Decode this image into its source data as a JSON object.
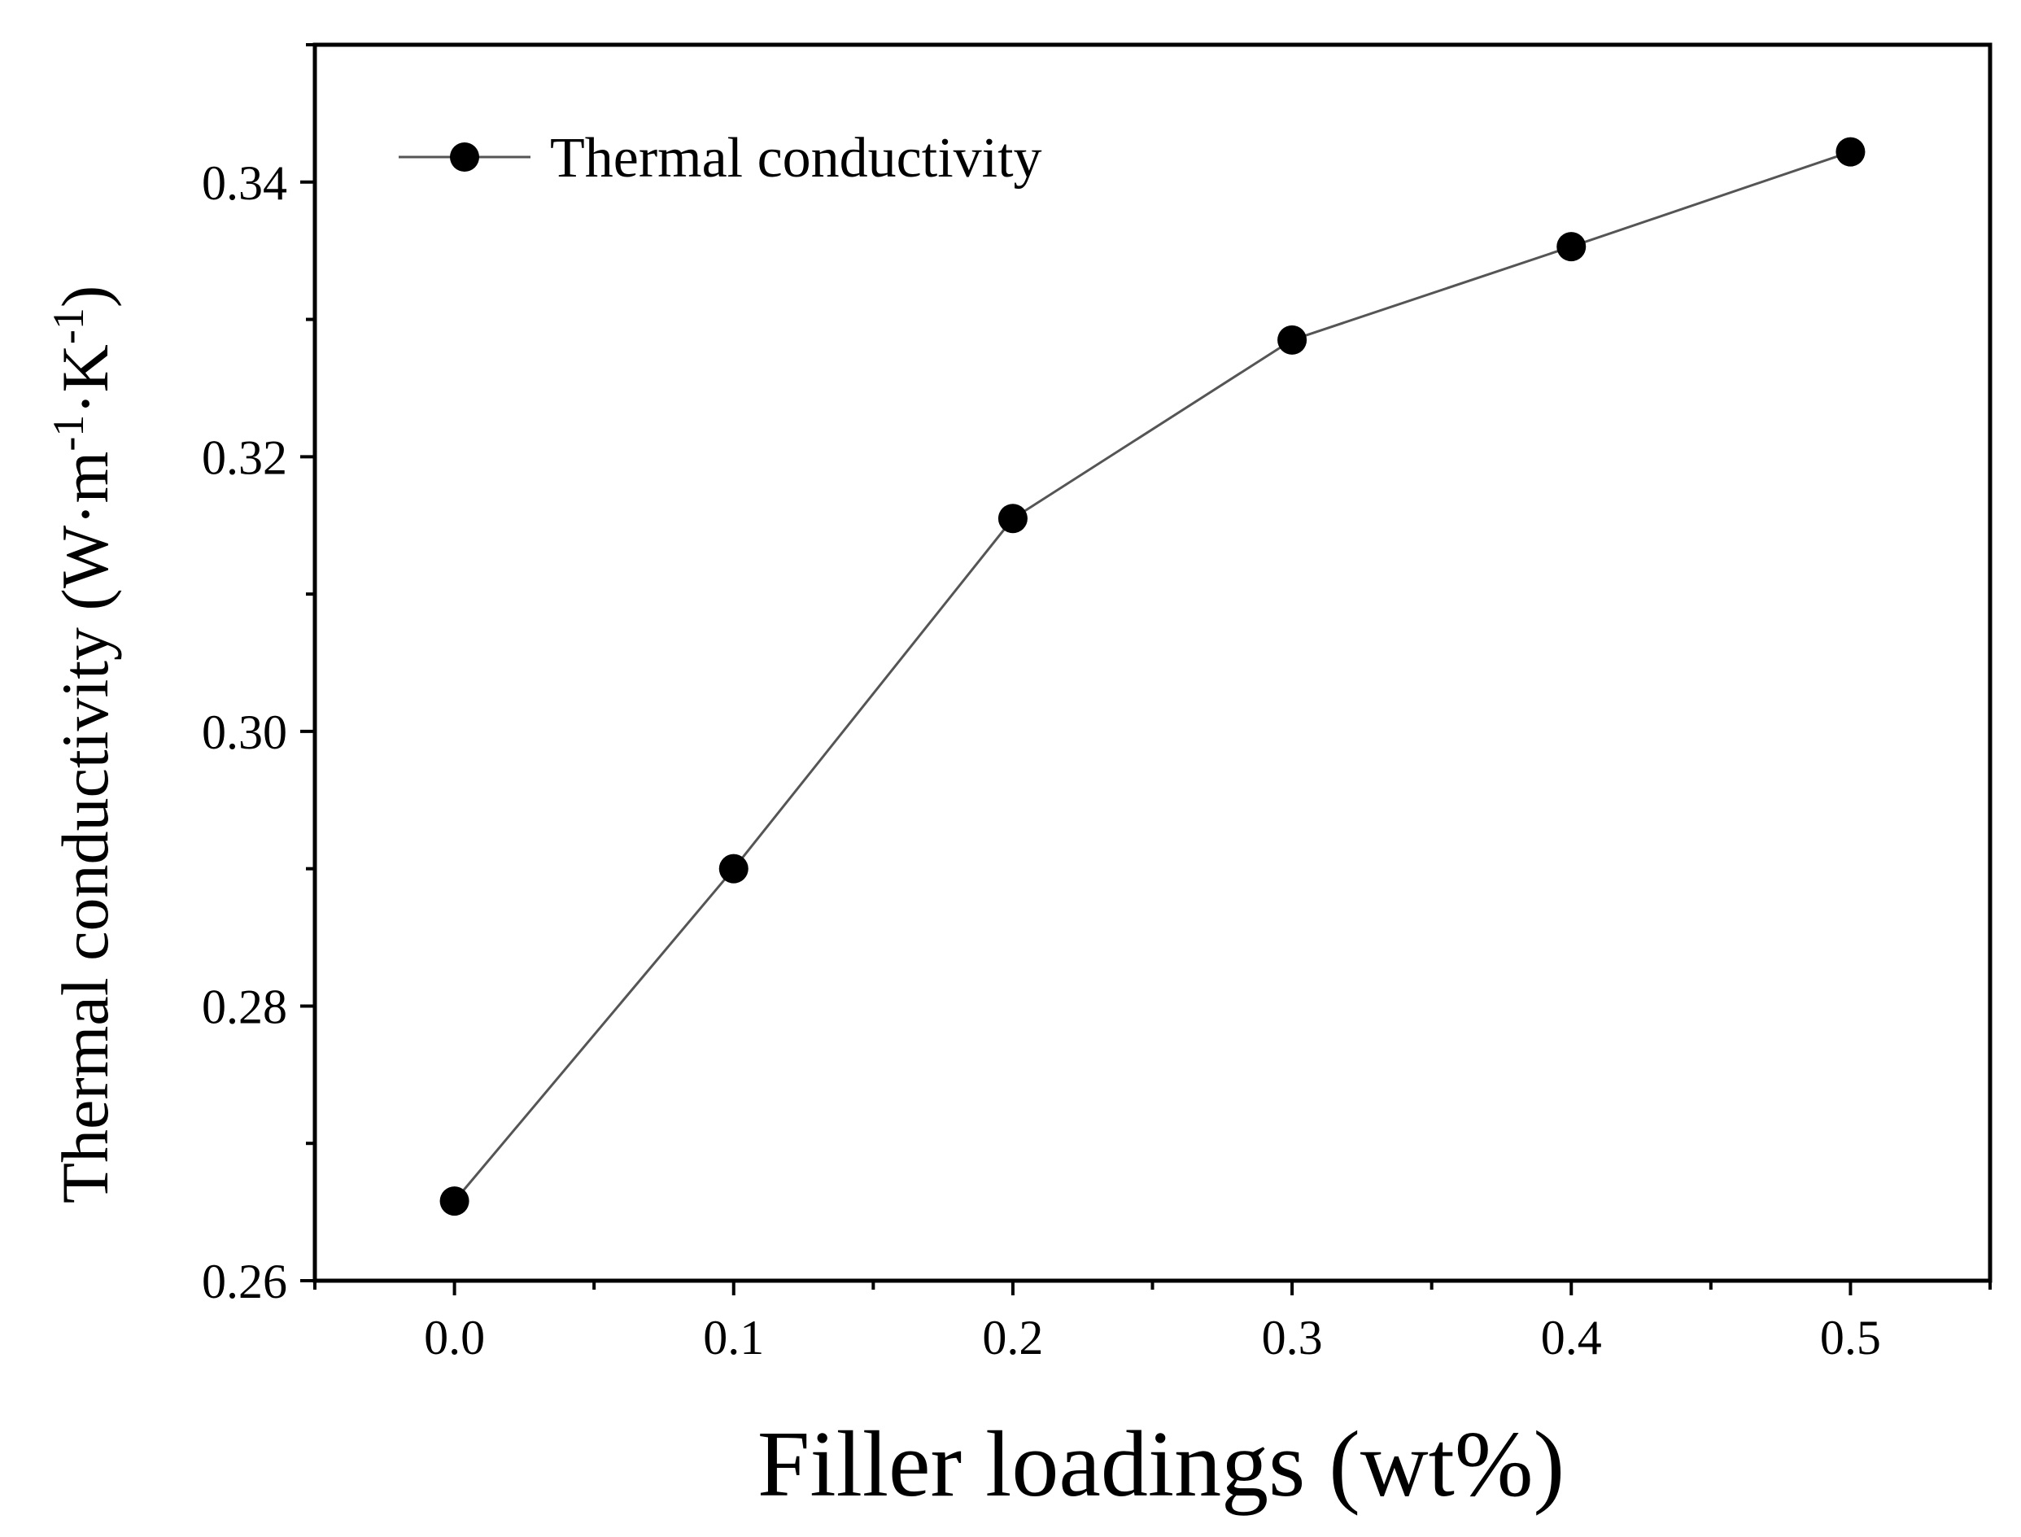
{
  "chart_data": {
    "type": "line",
    "title": "",
    "xlabel": "Filler loadings (wt%)",
    "ylabel": {
      "base": "Thermal conductivity (W·m",
      "sup1": "-1",
      "mid": "·K",
      "sup2": "-1",
      "end": ")"
    },
    "xlim": [
      -0.05,
      0.55
    ],
    "ylim": [
      0.26,
      0.35
    ],
    "x_ticks": [
      0.0,
      0.1,
      0.2,
      0.3,
      0.4,
      0.5
    ],
    "x_tick_labels": [
      "0.0",
      "0.1",
      "0.2",
      "0.3",
      "0.4",
      "0.5"
    ],
    "x_minor_ticks": [
      -0.05,
      0.05,
      0.15,
      0.25,
      0.35,
      0.45,
      0.55
    ],
    "y_ticks": [
      0.26,
      0.28,
      0.3,
      0.32,
      0.34
    ],
    "y_tick_labels": [
      "0.26",
      "0.28",
      "0.30",
      "0.32",
      "0.34"
    ],
    "y_minor_ticks": [
      0.27,
      0.29,
      0.31,
      0.33,
      0.35
    ],
    "grid": false,
    "legend": {
      "position": "top-left",
      "entries": [
        "Thermal conductivity"
      ]
    },
    "series": [
      {
        "name": "Thermal conductivity",
        "x": [
          0.0,
          0.1,
          0.2,
          0.3,
          0.4,
          0.5
        ],
        "y": [
          0.2658,
          0.29,
          0.3155,
          0.3285,
          0.3353,
          0.3422
        ],
        "marker": "circle",
        "color": "#000000",
        "line_color": "#555555"
      }
    ]
  }
}
